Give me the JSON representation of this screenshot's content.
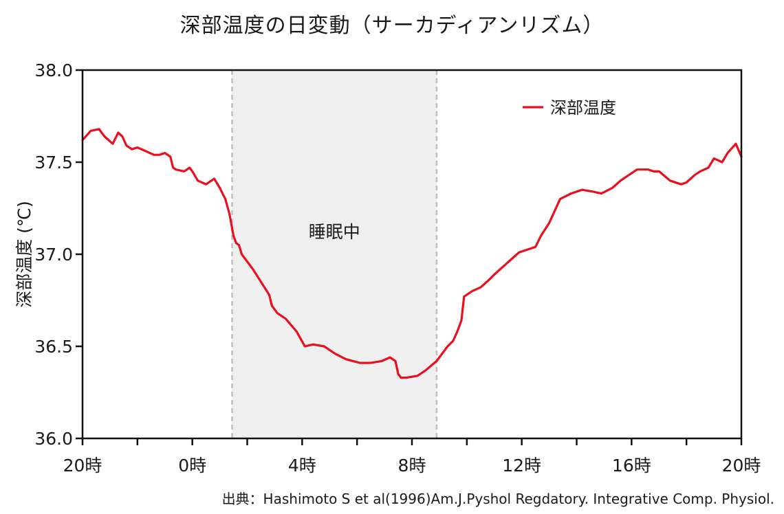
{
  "chart_data": {
    "type": "line",
    "title": "深部温度の日変動（サーカディアンリズム）",
    "ylabel": "深部温度 (℃)",
    "xlabel": "",
    "ylim": [
      36.0,
      38.0
    ],
    "y_ticks": [
      "36.0",
      "36.5",
      "37.0",
      "37.5",
      "38.0"
    ],
    "x_range": [
      -4,
      20
    ],
    "x_ticks": [
      {
        "x": -4,
        "label": "20時"
      },
      {
        "x": 0,
        "label": "0時"
      },
      {
        "x": 4,
        "label": "4時"
      },
      {
        "x": 8,
        "label": "8時"
      },
      {
        "x": 12,
        "label": "12時"
      },
      {
        "x": 16,
        "label": "16時"
      },
      {
        "x": 20,
        "label": "20時"
      }
    ],
    "shaded_region": {
      "start": 1.45,
      "end": 8.9,
      "label": "睡眠中"
    },
    "legend": {
      "position": "top-right",
      "entries": [
        "深部温度"
      ]
    },
    "series": [
      {
        "name": "深部温度",
        "color": "#e8101e",
        "x": [
          -4.0,
          -3.7,
          -3.4,
          -3.2,
          -2.9,
          -2.7,
          -2.55,
          -2.4,
          -2.2,
          -2.0,
          -1.7,
          -1.4,
          -1.2,
          -1.0,
          -0.8,
          -0.7,
          -0.6,
          -0.3,
          -0.1,
          0.0,
          0.2,
          0.5,
          0.8,
          1.0,
          1.2,
          1.35,
          1.5,
          1.6,
          1.7,
          1.8,
          2.0,
          2.2,
          2.5,
          2.8,
          2.9,
          3.1,
          3.4,
          3.8,
          4.1,
          4.4,
          4.8,
          5.2,
          5.6,
          6.1,
          6.5,
          6.9,
          7.2,
          7.4,
          7.5,
          7.6,
          7.8,
          8.2,
          8.5,
          8.9,
          9.1,
          9.3,
          9.5,
          9.65,
          9.8,
          9.9,
          10.2,
          10.5,
          10.8,
          11.0,
          11.3,
          11.6,
          11.9,
          12.1,
          12.3,
          12.5,
          12.7,
          13.0,
          13.4,
          13.8,
          14.2,
          14.6,
          14.9,
          15.3,
          15.6,
          15.9,
          16.2,
          16.6,
          16.8,
          17.0,
          17.4,
          17.8,
          18.0,
          18.3,
          18.5,
          18.8,
          19.0,
          19.3,
          19.5,
          19.8,
          20.0
        ],
        "values": [
          37.62,
          37.67,
          37.68,
          37.64,
          37.6,
          37.66,
          37.64,
          37.59,
          37.57,
          37.58,
          37.56,
          37.54,
          37.54,
          37.55,
          37.53,
          37.47,
          37.46,
          37.45,
          37.47,
          37.45,
          37.4,
          37.38,
          37.41,
          37.36,
          37.3,
          37.22,
          37.1,
          37.06,
          37.05,
          37.0,
          36.96,
          36.92,
          36.85,
          36.78,
          36.72,
          36.68,
          36.65,
          36.58,
          36.5,
          36.51,
          36.5,
          36.46,
          36.43,
          36.41,
          36.41,
          36.42,
          36.44,
          36.42,
          36.35,
          36.33,
          36.33,
          36.34,
          36.37,
          36.42,
          36.46,
          36.5,
          36.53,
          36.58,
          36.64,
          36.77,
          36.8,
          36.82,
          36.86,
          36.89,
          36.93,
          36.97,
          37.01,
          37.02,
          37.03,
          37.04,
          37.1,
          37.17,
          37.3,
          37.33,
          37.35,
          37.34,
          37.33,
          37.36,
          37.4,
          37.43,
          37.46,
          37.46,
          37.45,
          37.45,
          37.4,
          37.38,
          37.39,
          37.43,
          37.45,
          37.47,
          37.52,
          37.5,
          37.55,
          37.6,
          37.53
        ]
      }
    ]
  },
  "source": "出典：Hashimoto S et al(1996)Am.J.Pyshol Regdatory. Integrative Comp. Physiol."
}
